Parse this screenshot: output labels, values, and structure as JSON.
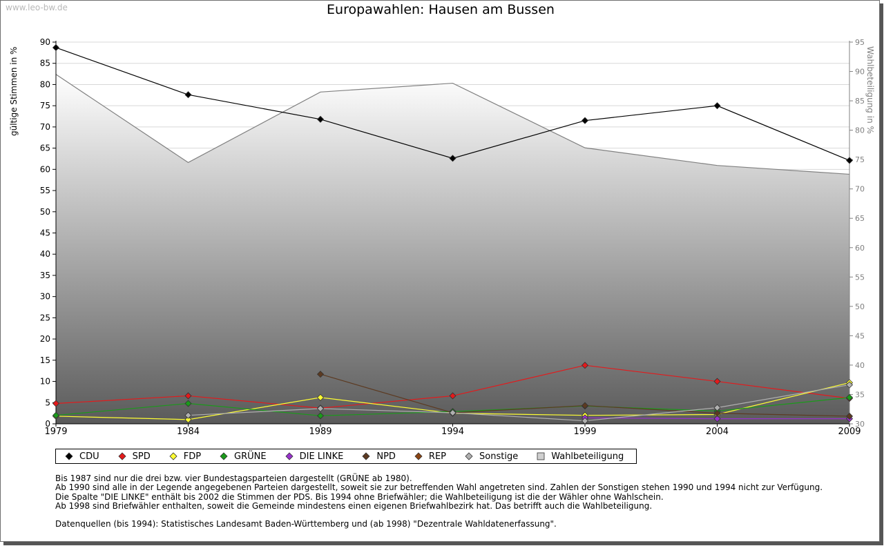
{
  "watermark": "www.leo-bw.de",
  "chart_data": {
    "type": "line",
    "title": "Europawahlen: Hausen am Bussen",
    "ylabel": "gültige Stimmen in %",
    "y2label": "Wahlbeteiligung in %",
    "xlabel": "",
    "x": [
      "1979",
      "1984",
      "1989",
      "1994",
      "1999",
      "2004",
      "2009"
    ],
    "ylim": [
      0,
      90
    ],
    "yticks": [
      0,
      5,
      10,
      15,
      20,
      25,
      30,
      35,
      40,
      45,
      50,
      55,
      60,
      65,
      70,
      75,
      80,
      85,
      90
    ],
    "y2lim": [
      30,
      95
    ],
    "y2ticks": [
      30,
      35,
      40,
      45,
      50,
      55,
      60,
      65,
      70,
      75,
      80,
      85,
      90,
      95
    ],
    "grid": true,
    "series": [
      {
        "name": "CDU",
        "color": "#000000",
        "values": [
          88.7,
          77.6,
          71.8,
          62.6,
          71.5,
          75.0,
          62.1
        ]
      },
      {
        "name": "SPD",
        "color": "#e31a1c",
        "values": [
          4.8,
          6.6,
          3.7,
          6.6,
          13.8,
          10.0,
          6.0
        ]
      },
      {
        "name": "FDP",
        "color": "#ffff33",
        "values": [
          1.8,
          1.0,
          6.2,
          2.5,
          2.0,
          2.2,
          9.7
        ]
      },
      {
        "name": "GRÜNE",
        "color": "#1a9a1a",
        "values": [
          2.0,
          4.8,
          1.9,
          2.9,
          4.2,
          3.0,
          6.2
        ]
      },
      {
        "name": "DIE LINKE",
        "color": "#9932cc",
        "values": [
          null,
          null,
          null,
          null,
          1.4,
          1.2,
          1.2
        ]
      },
      {
        "name": "NPD",
        "color": "#5c3a21",
        "values": [
          null,
          null,
          11.7,
          2.6,
          4.3,
          2.5,
          1.8
        ]
      },
      {
        "name": "REP",
        "color": "#8b4513",
        "values": [
          null,
          null,
          null,
          null,
          null,
          null,
          null
        ]
      },
      {
        "name": "Sonstige",
        "color": "#b0b0b0",
        "values": [
          null,
          2.0,
          3.6,
          2.6,
          0.7,
          3.8,
          9.2
        ]
      }
    ],
    "turnout": {
      "name": "Wahlbeteiligung",
      "color": "#808080",
      "values": [
        89.5,
        74.5,
        86.5,
        88.0,
        77.0,
        74.0,
        72.5
      ]
    }
  },
  "notes": [
    "Bis 1987 sind nur die drei bzw. vier Bundestagsparteien dargestellt (GRÜNE ab 1980).",
    "Ab 1990 sind alle in der Legende angegebenen Parteien dargestellt, soweit sie zur betreffenden Wahl angetreten sind. Zahlen der Sonstigen stehen 1990 und 1994 nicht zur Verfügung.",
    "Die Spalte \"DIE LINKE\" enthält bis 2002 die Stimmen der PDS. Bis 1994 ohne Briefwähler; die Wahlbeteiligung ist die der Wähler ohne Wahlschein.",
    "Ab 1998 sind Briefwähler enthalten, soweit die Gemeinde mindestens einen eigenen Briefwahlbezirk hat. Das betrifft auch die Wahlbeteiligung."
  ],
  "source": "Datenquellen (bis 1994): Statistisches Landesamt Baden-Württemberg und (ab 1998) \"Dezentrale Wahldatenerfassung\"."
}
